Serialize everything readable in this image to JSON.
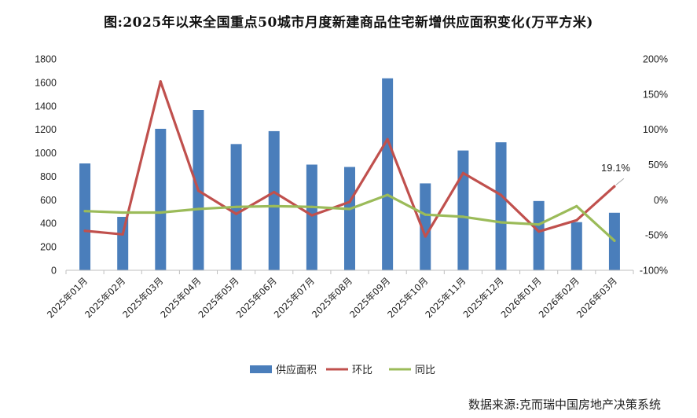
{
  "chart_data": {
    "type": "bar+line",
    "title": "图:2025年以来全国重点50城市月度新建商品住宅新增供应面积变化(万平方米)",
    "categories": [
      "2025年01月",
      "2025年02月",
      "2025年03月",
      "2025年04月",
      "2025年05月",
      "2025年06月",
      "2025年07月",
      "2025年08月",
      "2025年09月",
      "2025年10月",
      "2025年11月",
      "2025年12月",
      "2026年01月",
      "2026年02月",
      "2026年03月"
    ],
    "left_axis": {
      "ylim": [
        0,
        1800
      ],
      "ticks": [
        0,
        200,
        400,
        600,
        800,
        1000,
        1200,
        1400,
        1600,
        1800
      ]
    },
    "right_axis": {
      "ylim": [
        -100,
        200
      ],
      "ticks": [
        -100,
        -50,
        0,
        50,
        100,
        150,
        200
      ],
      "tick_labels": [
        "-100%",
        "-50%",
        "0%",
        "50%",
        "100%",
        "150%",
        "200%"
      ]
    },
    "series": [
      {
        "name": "供应面积",
        "type": "bar",
        "axis": "left",
        "color": "#4a7ebb",
        "values": [
          910,
          455,
          1205,
          1365,
          1075,
          1185,
          900,
          880,
          1635,
          740,
          1020,
          1090,
          590,
          410,
          490
        ]
      },
      {
        "name": "环比",
        "type": "line",
        "axis": "right",
        "color": "#c0504d",
        "values": [
          -44,
          -49,
          168,
          13,
          -20,
          11,
          -22,
          -3,
          86,
          -52,
          38,
          7,
          -45,
          -29,
          19.1
        ]
      },
      {
        "name": "同比",
        "type": "line",
        "axis": "right",
        "color": "#9bbb59",
        "values": [
          -16,
          -18,
          -18,
          -13,
          -10,
          -9,
          -10,
          -13,
          7,
          -21,
          -24,
          -32,
          -35,
          -9,
          -58
        ]
      }
    ],
    "annotation": {
      "text": "19.1%",
      "series": "环比",
      "index": 14
    },
    "legend": {
      "position": "bottom",
      "items": [
        "供应面积",
        "环比",
        "同比"
      ]
    }
  },
  "source": "数据来源:克而瑞中国房地产决策系统"
}
